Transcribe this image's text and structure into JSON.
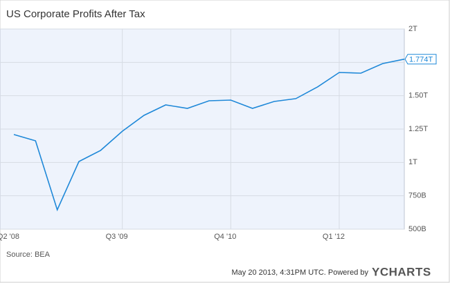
{
  "chart_data": {
    "type": "line",
    "title": "US Corporate Profits After Tax",
    "categories": [
      "Q2  '08",
      null,
      null,
      null,
      null,
      "Q3  '09",
      null,
      null,
      null,
      null,
      "Q4  '10",
      null,
      null,
      null,
      null,
      "Q1  '12",
      null,
      null,
      null
    ],
    "series": [
      {
        "name": "US Corporate Profits After Tax",
        "color": "#1e88d8",
        "values": [
          1209,
          1162,
          645,
          1007,
          1090,
          1234,
          1353,
          1431,
          1405,
          1462,
          1467,
          1405,
          1457,
          1478,
          1566,
          1674,
          1669,
          1741,
          1774
        ],
        "value_labels": [
          null,
          null,
          null,
          null,
          null,
          null,
          null,
          null,
          null,
          null,
          null,
          null,
          null,
          null,
          null,
          null,
          null,
          null,
          "1.774T"
        ]
      }
    ],
    "ylim": [
      500,
      2000
    ],
    "yticks": [
      {
        "value": 500,
        "label": "500B"
      },
      {
        "value": 750,
        "label": "750B"
      },
      {
        "value": 1000,
        "label": "1T"
      },
      {
        "value": 1250,
        "label": "1.25T"
      },
      {
        "value": 1500,
        "label": "1.50T"
      },
      {
        "value": 1750,
        "label": "1.75T"
      },
      {
        "value": 2000,
        "label": "2T"
      }
    ],
    "grid": true,
    "background": "#eef3fc",
    "source": "Source: BEA"
  },
  "footer": {
    "timestamp": "May 20 2013, 4:31PM UTC.  Powered by",
    "logo": "YCHARTS"
  }
}
